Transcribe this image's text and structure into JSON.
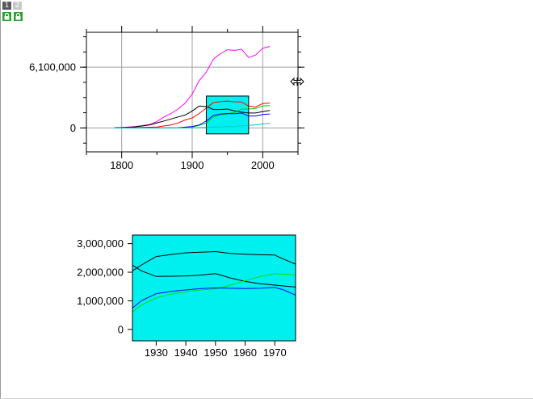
{
  "layer_tabs": [
    {
      "label": "1",
      "active": true
    },
    {
      "label": "2",
      "active": false
    }
  ],
  "icons": {
    "lock": "lock-icon",
    "resize_cursor": "horizontal-resize-cursor-icon"
  },
  "colors": {
    "zoom_fill": "#00f0f0",
    "grid": "#a0a0a0"
  },
  "chart_data": [
    {
      "type": "line",
      "grid": true,
      "xlim": [
        1750,
        2050
      ],
      "ylim": [
        -2400000,
        9600000
      ],
      "x_ticks": [
        1800,
        1900,
        2000
      ],
      "x_tick_labels": [
        "1800",
        "1900",
        "2000"
      ],
      "y_ticks": [
        0,
        6100000
      ],
      "y_tick_labels": [
        "0",
        "6,100,000"
      ],
      "zoom_region": {
        "x": [
          1920,
          1980
        ],
        "y": [
          -600000,
          3200000
        ]
      },
      "series": [
        {
          "color": "#ff00ff",
          "x": [
            1790,
            1800,
            1810,
            1820,
            1830,
            1840,
            1850,
            1860,
            1870,
            1880,
            1890,
            1900,
            1910,
            1920,
            1930,
            1940,
            1950,
            1960,
            1970,
            1980,
            1990,
            2000,
            2010
          ],
          "y": [
            30000,
            60000,
            100000,
            150000,
            240000,
            350000,
            650000,
            1100000,
            1450000,
            1900000,
            2500000,
            3400000,
            4750000,
            5600000,
            6900000,
            7450000,
            7850000,
            7780000,
            7900000,
            7070000,
            7320000,
            8000000,
            8180000
          ]
        },
        {
          "color": "#000000",
          "x": [
            1790,
            1800,
            1810,
            1820,
            1830,
            1840,
            1850,
            1860,
            1870,
            1880,
            1890,
            1900,
            1910,
            1920,
            1930,
            1940,
            1950,
            1960,
            1970,
            1980,
            1990,
            2000,
            2010
          ],
          "y": [
            20000,
            40000,
            70000,
            110000,
            200000,
            310000,
            510000,
            700000,
            900000,
            1100000,
            1300000,
            1700000,
            2200000,
            2150000,
            1850000,
            1850000,
            1900000,
            1700000,
            1580000,
            1500000,
            1500000,
            1650000,
            1750000
          ]
        },
        {
          "color": "#ff0000",
          "x": [
            1790,
            1800,
            1810,
            1820,
            1830,
            1840,
            1850,
            1860,
            1870,
            1880,
            1890,
            1900,
            1910,
            1920,
            1930,
            1940,
            1950,
            1960,
            1970,
            1980,
            1990,
            2000,
            2010
          ],
          "y": [
            5000,
            10000,
            20000,
            30000,
            50000,
            70000,
            100000,
            200000,
            300000,
            500000,
            800000,
            1000000,
            1450000,
            2000000,
            2550000,
            2650000,
            2700000,
            2630000,
            2600000,
            2200000,
            2100000,
            2450000,
            2500000
          ]
        },
        {
          "color": "#00cc00",
          "x": [
            1790,
            1800,
            1810,
            1820,
            1830,
            1840,
            1850,
            1860,
            1870,
            1880,
            1890,
            1900,
            1910,
            1920,
            1930,
            1940,
            1950,
            1960,
            1970,
            1980,
            1990,
            2000,
            2010
          ],
          "y": [
            0,
            0,
            0,
            0,
            0,
            0,
            0,
            0,
            0,
            0,
            30000,
            100000,
            250000,
            500000,
            1100000,
            1300000,
            1400000,
            1550000,
            1900000,
            1900000,
            1950000,
            2200000,
            2250000
          ]
        },
        {
          "color": "#0000ff",
          "x": [
            1790,
            1800,
            1810,
            1820,
            1830,
            1840,
            1850,
            1860,
            1870,
            1880,
            1890,
            1900,
            1910,
            1920,
            1930,
            1940,
            1950,
            1960,
            1970,
            1980,
            1990,
            2000,
            2010
          ],
          "y": [
            0,
            0,
            0,
            0,
            0,
            0,
            0,
            0,
            0,
            20000,
            80000,
            150000,
            300000,
            700000,
            1250000,
            1400000,
            1450000,
            1420000,
            1500000,
            1200000,
            1200000,
            1350000,
            1400000
          ]
        },
        {
          "color": "#00c8c8",
          "x": [
            1790,
            1800,
            1810,
            1820,
            1830,
            1840,
            1850,
            1860,
            1870,
            1880,
            1890,
            1900,
            1910,
            1920,
            1930,
            1940,
            1950,
            1960,
            1970,
            1980,
            1990,
            2000,
            2010
          ],
          "y": [
            0,
            0,
            0,
            0,
            0,
            0,
            0,
            0,
            0,
            0,
            0,
            10000,
            30000,
            50000,
            80000,
            100000,
            130000,
            150000,
            200000,
            250000,
            320000,
            400000,
            460000
          ]
        }
      ]
    },
    {
      "type": "line",
      "grid": false,
      "xlim": [
        1922,
        1977
      ],
      "ylim": [
        -400000,
        3300000
      ],
      "x_ticks": [
        1930,
        1940,
        1950,
        1960,
        1970
      ],
      "x_tick_labels": [
        "1930",
        "1940",
        "1950",
        "1960",
        "1970"
      ],
      "y_ticks": [
        0,
        1000000,
        2000000,
        3000000
      ],
      "y_tick_labels": [
        "0",
        "1,000,000",
        "2,000,000",
        "3,000,000"
      ],
      "background": "#00f0f0",
      "series": [
        {
          "color": "#000000",
          "x": [
            1922,
            1925,
            1930,
            1935,
            1940,
            1945,
            1950,
            1955,
            1960,
            1965,
            1970,
            1972,
            1977
          ],
          "y": [
            2050000,
            2250000,
            2550000,
            2620000,
            2680000,
            2700000,
            2720000,
            2660000,
            2630000,
            2610000,
            2600000,
            2500000,
            2280000
          ]
        },
        {
          "color": "#000000",
          "x": [
            1922,
            1925,
            1930,
            1935,
            1940,
            1945,
            1950,
            1955,
            1960,
            1965,
            1970,
            1975,
            1977
          ],
          "y": [
            2250000,
            2050000,
            1850000,
            1860000,
            1870000,
            1900000,
            1950000,
            1800000,
            1680000,
            1600000,
            1550000,
            1500000,
            1480000
          ]
        },
        {
          "color": "#00e000",
          "x": [
            1922,
            1925,
            1930,
            1935,
            1940,
            1945,
            1950,
            1955,
            1960,
            1965,
            1970,
            1975,
            1977
          ],
          "y": [
            600000,
            850000,
            1100000,
            1230000,
            1320000,
            1380000,
            1420000,
            1550000,
            1700000,
            1850000,
            1950000,
            1920000,
            1900000
          ]
        },
        {
          "color": "#0000ff",
          "x": [
            1922,
            1925,
            1930,
            1935,
            1940,
            1945,
            1950,
            1955,
            1960,
            1965,
            1970,
            1973,
            1977
          ],
          "y": [
            750000,
            1000000,
            1250000,
            1330000,
            1380000,
            1430000,
            1450000,
            1440000,
            1430000,
            1440000,
            1470000,
            1380000,
            1200000
          ]
        }
      ]
    }
  ]
}
